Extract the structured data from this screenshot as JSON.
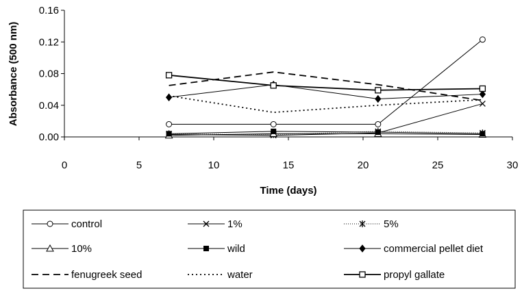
{
  "chart_data": {
    "type": "line",
    "title": "",
    "xlabel": "Time (days)",
    "ylabel": "Absorbance (500 nm)",
    "xlim": [
      0,
      30
    ],
    "ylim": [
      0,
      0.16
    ],
    "xticks": [
      "0",
      "5",
      "10",
      "15",
      "20",
      "25",
      "30"
    ],
    "yticks": [
      "0.00",
      "0.04",
      "0.08",
      "0.12",
      "0.16"
    ],
    "legend_position": "bottom",
    "x": [
      7,
      14,
      21,
      28
    ],
    "series": [
      {
        "name": "control",
        "values": [
          0.016,
          0.016,
          0.016,
          0.123
        ],
        "marker": "circle",
        "dash": "solid"
      },
      {
        "name": "1%",
        "values": [
          0.003,
          0.002,
          0.005,
          0.042
        ],
        "marker": "x",
        "dash": "solid"
      },
      {
        "name": "5%",
        "values": [
          0.004,
          0.003,
          0.007,
          0.005
        ],
        "marker": "star",
        "dash": "dotted-thin"
      },
      {
        "name": "10%",
        "values": [
          0.002,
          0.004,
          0.004,
          0.003
        ],
        "marker": "triangle",
        "dash": "solid"
      },
      {
        "name": "wild",
        "values": [
          0.004,
          0.007,
          0.006,
          0.004
        ],
        "marker": "square-filled",
        "dash": "solid"
      },
      {
        "name": "commercial pellet diet",
        "values": [
          0.05,
          0.066,
          0.048,
          0.054
        ],
        "marker": "diamond-filled",
        "dash": "solid"
      },
      {
        "name": "fenugreek seed",
        "values": [
          0.065,
          0.082,
          0.066,
          0.046
        ],
        "marker": "none",
        "dash": "dashed"
      },
      {
        "name": "water",
        "values": [
          0.052,
          0.031,
          0.04,
          0.047
        ],
        "marker": "none",
        "dash": "dotted"
      },
      {
        "name": "propyl gallate",
        "values": [
          0.078,
          0.065,
          0.059,
          0.061
        ],
        "marker": "square-open",
        "dash": "solid-thick"
      }
    ]
  }
}
